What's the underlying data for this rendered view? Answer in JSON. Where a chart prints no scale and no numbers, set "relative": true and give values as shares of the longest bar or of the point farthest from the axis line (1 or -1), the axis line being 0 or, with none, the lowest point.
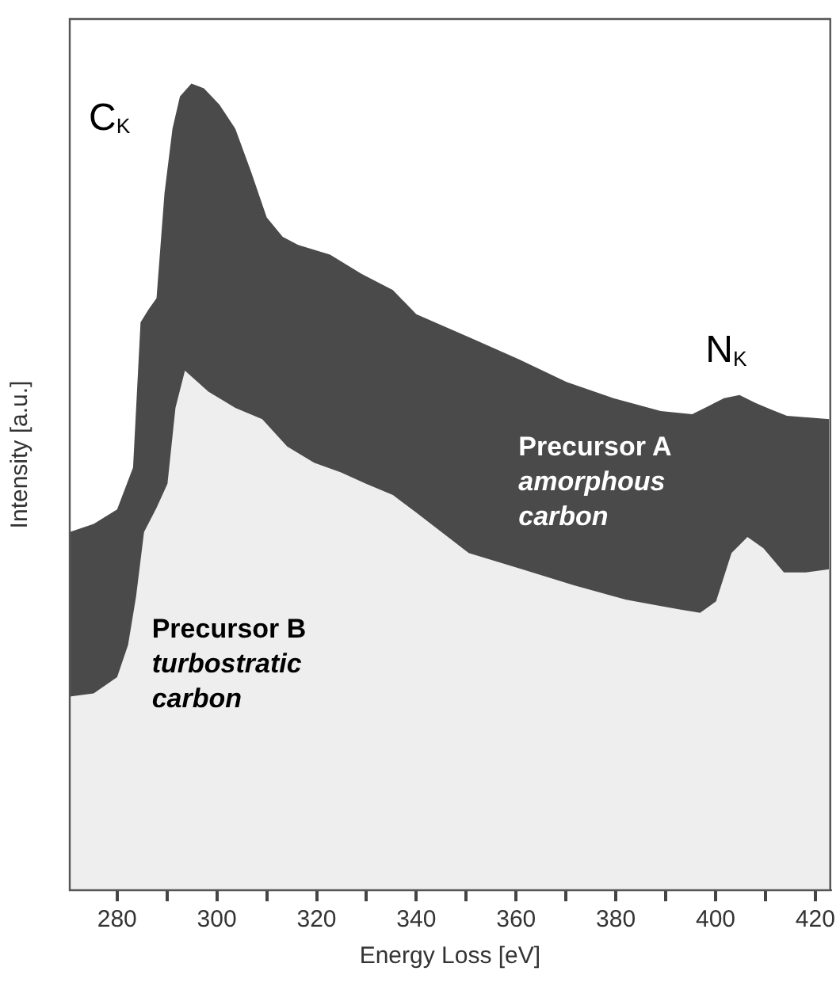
{
  "chart_data": {
    "type": "area",
    "xlabel": "Energy Loss [eV]",
    "ylabel": "Intensity [a.u.]",
    "relative": true,
    "xlim": [
      270.5,
      423
    ],
    "xticks": [
      280,
      {
        "value": 290,
        "label": null
      },
      300,
      {
        "value": 310,
        "label": null
      },
      320,
      {
        "value": 330,
        "label": null
      },
      340,
      {
        "value": 350,
        "label": null
      },
      360,
      {
        "value": 370,
        "label": null
      },
      380,
      {
        "value": 390,
        "label": null
      },
      400,
      {
        "value": 410,
        "label": null
      },
      420
    ],
    "series": [
      {
        "color": "#4a4a4a",
        "x": [
          270.5,
          275.3,
          280,
          283.2,
          284.7,
          286.3,
          287.9,
          289.5,
          291.1,
          292.6,
          294.9,
          297.4,
          300.5,
          303.7,
          306.9,
          310,
          313.2,
          316.3,
          322.7,
          329,
          335.3,
          340,
          351.1,
          360.6,
          370.1,
          379.5,
          389,
          395.3,
          398.5,
          401.7,
          404.8,
          408,
          411.1,
          414.3,
          422.8
        ],
        "values": [
          0.444,
          0.454,
          0.472,
          0.524,
          0.704,
          0.72,
          0.734,
          0.864,
          0.944,
          0.984,
          1,
          0.994,
          0.974,
          0.944,
          0.89,
          0.834,
          0.81,
          0.8,
          0.788,
          0.764,
          0.744,
          0.714,
          0.684,
          0.658,
          0.63,
          0.61,
          0.594,
          0.59,
          0.6,
          0.61,
          0.614,
          0.604,
          0.596,
          0.588,
          0.584
        ]
      },
      {
        "color": "#eeeeee",
        "x": [
          270.5,
          275.3,
          280,
          282.2,
          283.8,
          285.4,
          287.9,
          290.1,
          291.7,
          293.6,
          298.3,
          303.7,
          309.1,
          314.1,
          319.5,
          324.9,
          329.9,
          335.3,
          340,
          350.5,
          361.2,
          371.6,
          382.1,
          392.8,
          396.9,
          400.1,
          403.2,
          406.4,
          409.6,
          413.7,
          418.1,
          422.8
        ],
        "values": [
          0.24,
          0.244,
          0.264,
          0.304,
          0.364,
          0.444,
          0.474,
          0.504,
          0.598,
          0.644,
          0.618,
          0.598,
          0.584,
          0.55,
          0.53,
          0.518,
          0.504,
          0.49,
          0.468,
          0.418,
          0.398,
          0.378,
          0.36,
          0.348,
          0.344,
          0.358,
          0.418,
          0.438,
          0.424,
          0.394,
          0.394,
          0.398
        ]
      }
    ],
    "annotations": [
      "C$_{K}$",
      "N$_{K}$",
      "Precursor A\namorphous\ncarbon",
      "Precursor B\nturbostratic\ncarbon"
    ]
  }
}
